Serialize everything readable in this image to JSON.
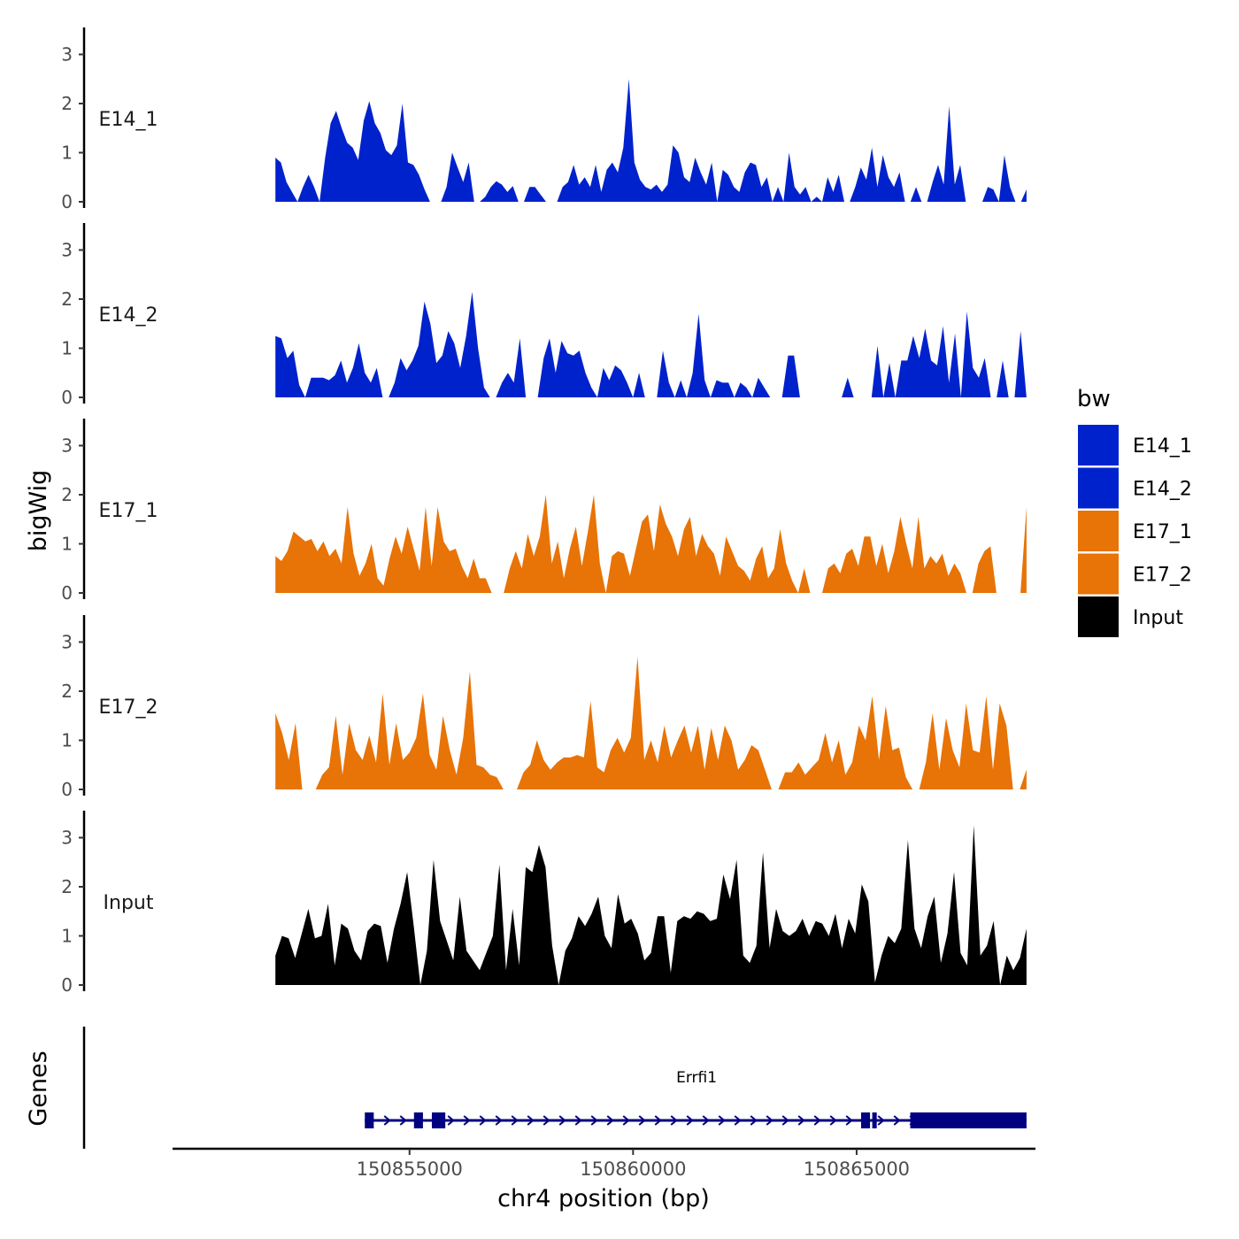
{
  "chart_data": {
    "type": "area",
    "ylabel": "bigWig",
    "xlabel": "chr4 position (bp)",
    "x_ticks": [
      150855000,
      150860000,
      150865000
    ],
    "x_tick_labels": [
      "150855000",
      "150860000",
      "150865000"
    ],
    "xlim": [
      150849700,
      150869000
    ],
    "ylim": [
      0,
      3.5
    ],
    "y_ticks": [
      0,
      1,
      2,
      3
    ],
    "x_range_signal": [
      150852000,
      150868800
    ],
    "legend": {
      "title": "bw",
      "position": "right",
      "entries": [
        {
          "label": "E14_1",
          "color": "#0022CC"
        },
        {
          "label": "E14_2",
          "color": "#0022CC"
        },
        {
          "label": "E17_1",
          "color": "#E87306"
        },
        {
          "label": "E17_2",
          "color": "#E87306"
        },
        {
          "label": "Input",
          "color": "#000000"
        }
      ]
    },
    "series": [
      {
        "name": "E14_1",
        "color": "#0022CC",
        "values": [
          0.9,
          0.8,
          0.4,
          0.2,
          0.0,
          0.3,
          0.55,
          0.3,
          0.0,
          0.9,
          1.6,
          1.85,
          1.5,
          1.2,
          1.1,
          0.85,
          1.65,
          2.05,
          1.6,
          1.4,
          1.05,
          0.95,
          1.15,
          2.0,
          0.8,
          0.75,
          0.55,
          0.25,
          0.0,
          0.0,
          0.0,
          0.3,
          1.0,
          0.7,
          0.4,
          0.8,
          0.0,
          0.0,
          0.1,
          0.3,
          0.42,
          0.35,
          0.2,
          0.32,
          0.0,
          0.0,
          0.3,
          0.3,
          0.15,
          0.0,
          0.0,
          0.0,
          0.3,
          0.4,
          0.75,
          0.35,
          0.5,
          0.3,
          0.75,
          0.2,
          0.65,
          0.8,
          0.6,
          1.1,
          2.5,
          0.8,
          0.45,
          0.3,
          0.25,
          0.35,
          0.2,
          0.35,
          1.15,
          1.0,
          0.5,
          0.4,
          0.9,
          0.6,
          0.35,
          0.8,
          0.0,
          0.65,
          0.55,
          0.3,
          0.2,
          0.6,
          0.8,
          0.75,
          0.3,
          0.5,
          0.0,
          0.3,
          0.0,
          1.0,
          0.3,
          0.15,
          0.3,
          0.0,
          0.1,
          0.0,
          0.5,
          0.2,
          0.55,
          0.0,
          0.0,
          0.3,
          0.7,
          0.45,
          1.1,
          0.3,
          0.95,
          0.5,
          0.3,
          0.6,
          0.0,
          0.0,
          0.3,
          0.0,
          0.0,
          0.4,
          0.75,
          0.35,
          1.95,
          0.35,
          0.75,
          0.0,
          0.0,
          0.0,
          0.0,
          0.3,
          0.25,
          0.0,
          0.95,
          0.3,
          0.0,
          0.0,
          0.25
        ]
      },
      {
        "name": "E14_2",
        "color": "#0022CC",
        "values": [
          1.25,
          1.2,
          0.8,
          0.95,
          0.25,
          0.0,
          0.4,
          0.4,
          0.4,
          0.35,
          0.45,
          0.75,
          0.3,
          0.6,
          1.1,
          0.5,
          0.3,
          0.6,
          0.0,
          0.0,
          0.3,
          0.8,
          0.55,
          0.75,
          1.05,
          1.95,
          1.5,
          0.7,
          0.85,
          1.35,
          1.1,
          0.6,
          1.25,
          2.15,
          1.0,
          0.2,
          0.0,
          0.0,
          0.3,
          0.5,
          0.3,
          1.2,
          0.0,
          0.0,
          0.0,
          0.8,
          1.2,
          0.5,
          1.15,
          0.9,
          0.85,
          0.95,
          0.5,
          0.2,
          0.0,
          0.6,
          0.35,
          0.65,
          0.55,
          0.3,
          0.0,
          0.5,
          0.0,
          0.0,
          0.0,
          0.95,
          0.3,
          0.0,
          0.35,
          0.0,
          0.5,
          1.7,
          0.35,
          0.0,
          0.35,
          0.3,
          0.3,
          0.0,
          0.3,
          0.2,
          0.0,
          0.4,
          0.2,
          0.0,
          0.0,
          0.0,
          0.85,
          0.85,
          0.0,
          0.0,
          0.0,
          0.0,
          0.0,
          0.0,
          0.0,
          0.0,
          0.4,
          0.0,
          0.0,
          0.0,
          0.0,
          1.05,
          0.0,
          0.7,
          0.0,
          0.75,
          0.75,
          1.25,
          0.8,
          1.4,
          0.75,
          0.65,
          1.45,
          0.3,
          1.3,
          0.0,
          1.75,
          0.6,
          0.4,
          0.8,
          0.0,
          0.0,
          0.75,
          0.0,
          0.0,
          1.35,
          0.0
        ]
      },
      {
        "name": "E17_1",
        "color": "#E87306",
        "values": [
          0.75,
          0.65,
          0.85,
          1.25,
          1.15,
          1.05,
          1.1,
          0.85,
          1.05,
          0.75,
          0.9,
          0.6,
          1.75,
          0.8,
          0.35,
          0.6,
          1.0,
          0.3,
          0.15,
          0.7,
          1.15,
          0.8,
          1.35,
          0.9,
          0.45,
          1.75,
          0.55,
          1.75,
          1.05,
          0.85,
          0.9,
          0.55,
          0.3,
          0.7,
          0.3,
          0.3,
          0.0,
          0.0,
          0.0,
          0.5,
          0.85,
          0.5,
          1.2,
          0.75,
          1.15,
          2.0,
          0.6,
          1.05,
          0.3,
          0.9,
          1.35,
          0.55,
          1.25,
          2.0,
          0.6,
          0.0,
          0.75,
          0.85,
          0.8,
          0.35,
          0.9,
          1.45,
          1.6,
          0.85,
          1.8,
          1.4,
          1.15,
          0.75,
          1.3,
          1.55,
          0.75,
          1.2,
          0.95,
          0.8,
          0.35,
          1.15,
          0.85,
          0.55,
          0.45,
          0.25,
          0.7,
          0.95,
          0.3,
          0.5,
          1.3,
          0.6,
          0.25,
          0.0,
          0.5,
          0.0,
          0.0,
          0.0,
          0.5,
          0.6,
          0.4,
          0.8,
          0.9,
          0.55,
          1.15,
          1.15,
          0.55,
          1.0,
          0.4,
          0.85,
          1.55,
          1.0,
          0.5,
          1.55,
          0.5,
          0.75,
          0.6,
          0.8,
          0.35,
          0.6,
          0.4,
          0.0,
          0.0,
          0.6,
          0.85,
          0.95,
          0.0,
          0.0,
          0.0,
          0.0,
          0.0,
          1.75
        ]
      },
      {
        "name": "E17_2",
        "color": "#E87306",
        "values": [
          1.55,
          1.15,
          0.6,
          1.35,
          0.0,
          0.0,
          0.0,
          0.3,
          0.45,
          1.5,
          0.3,
          1.35,
          0.8,
          0.6,
          1.1,
          0.55,
          1.95,
          0.5,
          1.35,
          0.6,
          0.75,
          1.05,
          1.95,
          0.7,
          0.4,
          1.5,
          0.8,
          0.3,
          1.05,
          2.4,
          0.5,
          0.45,
          0.3,
          0.25,
          0.0,
          0.0,
          0.0,
          0.35,
          0.5,
          1.0,
          0.6,
          0.4,
          0.55,
          0.65,
          0.65,
          0.7,
          0.65,
          1.8,
          0.45,
          0.35,
          0.8,
          1.05,
          0.75,
          1.05,
          2.7,
          0.6,
          1.0,
          0.55,
          1.3,
          0.65,
          1.0,
          1.3,
          0.75,
          1.3,
          0.4,
          1.25,
          0.6,
          1.3,
          1.0,
          0.4,
          0.6,
          0.9,
          0.8,
          0.4,
          0.0,
          0.0,
          0.35,
          0.35,
          0.55,
          0.3,
          0.45,
          0.6,
          1.15,
          0.55,
          1.0,
          0.3,
          0.55,
          1.3,
          1.0,
          1.9,
          0.6,
          1.7,
          0.8,
          0.85,
          0.25,
          0.0,
          0.0,
          0.55,
          1.55,
          0.4,
          1.45,
          0.8,
          0.45,
          1.75,
          0.8,
          0.75,
          1.9,
          0.4,
          1.75,
          1.3,
          0.0,
          0.0,
          0.4
        ]
      },
      {
        "name": "Input",
        "color": "#000000",
        "values": [
          0.6,
          1.0,
          0.95,
          0.55,
          1.05,
          1.55,
          0.95,
          1.0,
          1.65,
          0.4,
          1.25,
          1.15,
          0.7,
          0.5,
          1.1,
          1.25,
          1.2,
          0.45,
          1.15,
          1.65,
          2.3,
          1.2,
          0.0,
          0.7,
          2.55,
          1.3,
          0.9,
          0.5,
          1.8,
          0.7,
          0.5,
          0.3,
          0.65,
          1.0,
          2.45,
          0.3,
          1.55,
          0.4,
          2.4,
          2.3,
          2.85,
          2.4,
          0.8,
          0.0,
          0.7,
          0.95,
          1.4,
          1.2,
          1.45,
          1.8,
          1.0,
          0.75,
          1.85,
          1.25,
          1.35,
          1.05,
          0.5,
          0.65,
          1.4,
          1.4,
          0.25,
          1.3,
          1.4,
          1.35,
          1.5,
          1.45,
          1.3,
          1.35,
          2.25,
          1.75,
          2.55,
          0.6,
          0.45,
          0.8,
          2.7,
          0.75,
          1.55,
          1.1,
          1.0,
          1.1,
          1.35,
          1.0,
          1.3,
          1.25,
          1.0,
          1.45,
          0.75,
          1.35,
          1.05,
          2.05,
          1.7,
          0.05,
          0.6,
          1.0,
          0.85,
          1.15,
          2.95,
          1.15,
          0.75,
          1.4,
          1.8,
          0.45,
          1.05,
          2.3,
          0.65,
          0.4,
          3.25,
          0.6,
          0.8,
          1.3,
          0.0,
          0.6,
          0.3,
          0.55,
          1.15
        ]
      }
    ],
    "genes_track": {
      "label": "Genes",
      "gene_name": "Errfi1",
      "gene_start": 150854000,
      "gene_end": 150868800,
      "strand": "+",
      "color": "#000080",
      "exons": [
        {
          "start": 150854000,
          "end": 150854200
        },
        {
          "start": 150855100,
          "end": 150855300
        },
        {
          "start": 150855500,
          "end": 150855800
        },
        {
          "start": 150865100,
          "end": 150865300
        },
        {
          "start": 150865350,
          "end": 150865450
        },
        {
          "start": 150866200,
          "end": 150868800
        }
      ]
    }
  }
}
